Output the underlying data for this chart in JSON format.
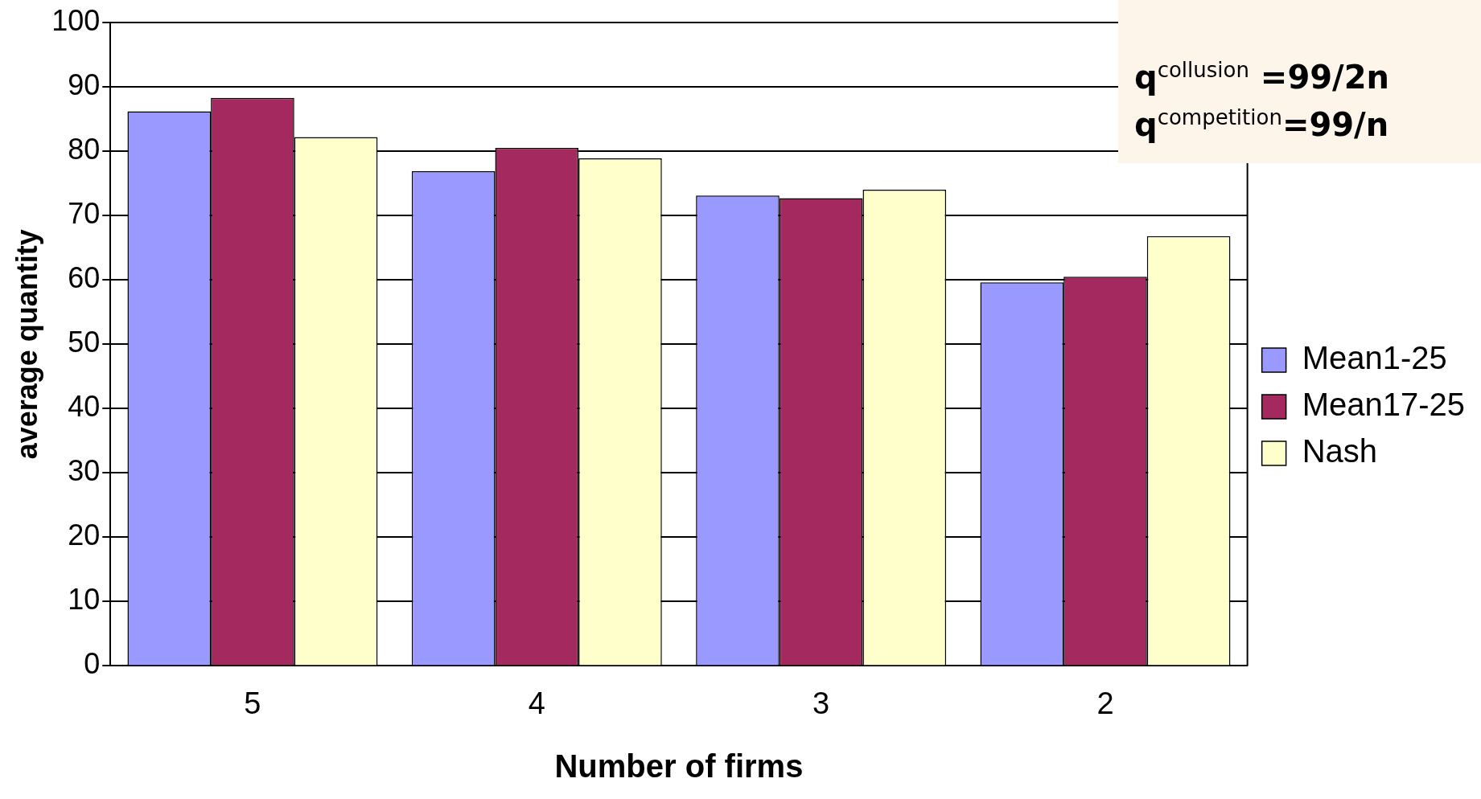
{
  "chart_data": {
    "type": "bar",
    "xlabel": "Number of firms",
    "ylabel": "average quantity",
    "categories": [
      "5",
      "4",
      "3",
      "2"
    ],
    "series": [
      {
        "name": "Mean1-25",
        "color": "#9999ff",
        "values": [
          86.2,
          76.9,
          73.1,
          59.6
        ]
      },
      {
        "name": "Mean17-25",
        "color": "#a3295e",
        "values": [
          88.3,
          80.5,
          72.7,
          60.5
        ]
      },
      {
        "name": "Nash",
        "color": "#ffffcc",
        "values": [
          82.2,
          78.9,
          74.0,
          66.8
        ]
      }
    ],
    "ylim": [
      0,
      100
    ],
    "yticks": [
      0,
      10,
      20,
      30,
      40,
      50,
      60,
      70,
      80,
      90,
      100
    ],
    "grid": "y",
    "legend": "right",
    "annotations": [
      "q$^{collusion}$ =99/2n",
      "q$^{competition}$=99/n"
    ]
  }
}
